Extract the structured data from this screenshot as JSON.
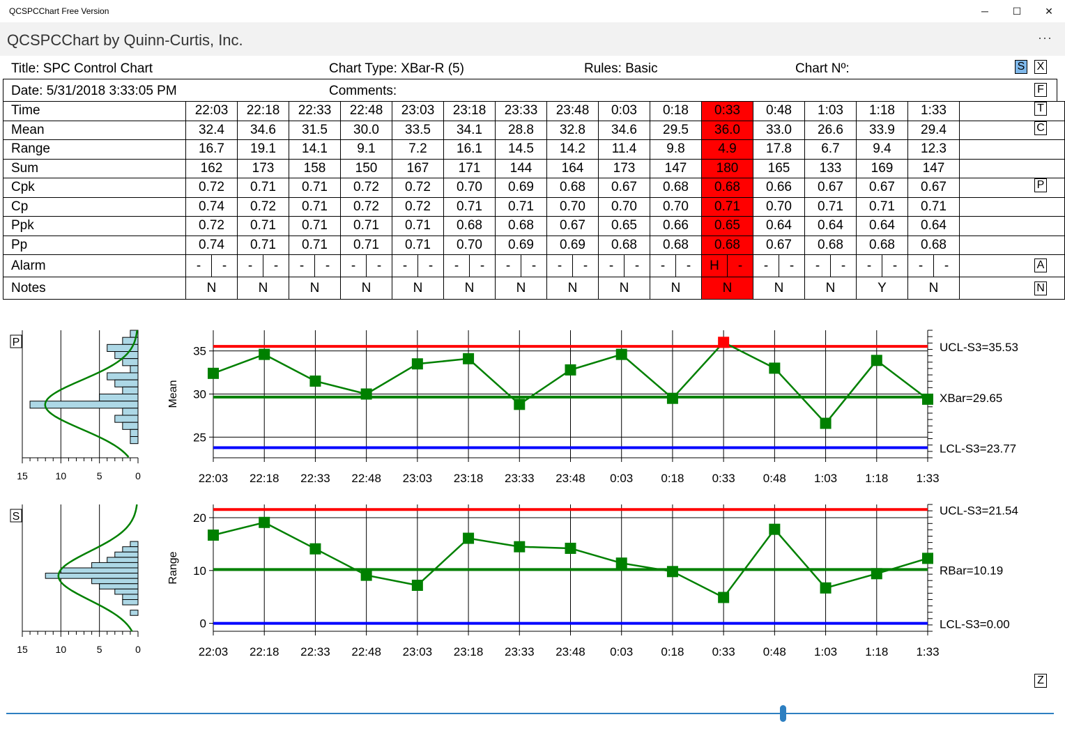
{
  "window": {
    "title": "QCSPCChart Free Version",
    "minimize": "─",
    "maximize": "☐",
    "close": "✕"
  },
  "appbar": {
    "heading": "QCSPCChart by Quinn-Curtis, Inc.",
    "more": "···"
  },
  "header": {
    "title": "Title: SPC Control Chart",
    "chart_type": "Chart Type: XBar-R (5)",
    "rules": "Rules: Basic",
    "chart_no": "Chart Nº:",
    "date": "Date: 5/31/2018 3:33:05 PM",
    "comments": "Comments:"
  },
  "toolbar": {
    "s": "S",
    "x": "X",
    "f": "F",
    "t": "T",
    "c": "C",
    "p": "P",
    "a": "A",
    "n": "N",
    "z": "Z"
  },
  "table": {
    "highlight_index": 10,
    "highlight_color": "#ff0000",
    "time": [
      "22:03",
      "22:18",
      "22:33",
      "22:48",
      "23:03",
      "23:18",
      "23:33",
      "23:48",
      "0:03",
      "0:18",
      "0:33",
      "0:48",
      "1:03",
      "1:18",
      "1:33"
    ],
    "rows": [
      {
        "label": "Mean",
        "values": [
          "32.4",
          "34.6",
          "31.5",
          "30.0",
          "33.5",
          "34.1",
          "28.8",
          "32.8",
          "34.6",
          "29.5",
          "36.0",
          "33.0",
          "26.6",
          "33.9",
          "29.4"
        ]
      },
      {
        "label": "Range",
        "values": [
          "16.7",
          "19.1",
          "14.1",
          "9.1",
          "7.2",
          "16.1",
          "14.5",
          "14.2",
          "11.4",
          "9.8",
          "4.9",
          "17.8",
          "6.7",
          "9.4",
          "12.3"
        ]
      },
      {
        "label": "Sum",
        "values": [
          "162",
          "173",
          "158",
          "150",
          "167",
          "171",
          "144",
          "164",
          "173",
          "147",
          "180",
          "165",
          "133",
          "169",
          "147"
        ]
      },
      {
        "label": "Cpk",
        "values": [
          "0.72",
          "0.71",
          "0.71",
          "0.72",
          "0.72",
          "0.70",
          "0.69",
          "0.68",
          "0.67",
          "0.68",
          "0.68",
          "0.66",
          "0.67",
          "0.67",
          "0.67"
        ]
      },
      {
        "label": "Cp",
        "values": [
          "0.74",
          "0.72",
          "0.71",
          "0.72",
          "0.72",
          "0.71",
          "0.71",
          "0.70",
          "0.70",
          "0.70",
          "0.71",
          "0.70",
          "0.71",
          "0.71",
          "0.71"
        ]
      },
      {
        "label": "Ppk",
        "values": [
          "0.72",
          "0.71",
          "0.71",
          "0.71",
          "0.71",
          "0.68",
          "0.68",
          "0.67",
          "0.65",
          "0.66",
          "0.65",
          "0.64",
          "0.64",
          "0.64",
          "0.64"
        ]
      },
      {
        "label": "Pp",
        "values": [
          "0.74",
          "0.71",
          "0.71",
          "0.71",
          "0.71",
          "0.70",
          "0.69",
          "0.69",
          "0.68",
          "0.68",
          "0.68",
          "0.67",
          "0.68",
          "0.68",
          "0.68"
        ]
      }
    ],
    "time_label": "Time",
    "alarm_label": "Alarm",
    "alarms": [
      [
        "-",
        "-"
      ],
      [
        "-",
        "-"
      ],
      [
        "-",
        "-"
      ],
      [
        "-",
        "-"
      ],
      [
        "-",
        "-"
      ],
      [
        "-",
        "-"
      ],
      [
        "-",
        "-"
      ],
      [
        "-",
        "-"
      ],
      [
        "-",
        "-"
      ],
      [
        "-",
        "-"
      ],
      [
        "H",
        "-"
      ],
      [
        "-",
        "-"
      ],
      [
        "-",
        "-"
      ],
      [
        "-",
        "-"
      ],
      [
        "-",
        "-"
      ]
    ],
    "notes_label": "Notes",
    "notes": [
      "N",
      "N",
      "N",
      "N",
      "N",
      "N",
      "N",
      "N",
      "N",
      "N",
      "N",
      "N",
      "N",
      "Y",
      "N"
    ]
  },
  "chart_data": [
    {
      "type": "line",
      "ylabel": "Mean",
      "ylim": [
        22.6,
        37.4
      ],
      "yticks": [
        25,
        30,
        35
      ],
      "x": [
        "22:03",
        "22:18",
        "22:33",
        "22:48",
        "23:03",
        "23:18",
        "23:33",
        "23:48",
        "0:03",
        "0:18",
        "0:33",
        "0:48",
        "1:03",
        "1:18",
        "1:33"
      ],
      "values": [
        32.4,
        34.6,
        31.5,
        30.0,
        33.5,
        34.1,
        28.8,
        32.8,
        34.6,
        29.5,
        36.0,
        33.0,
        26.6,
        33.9,
        29.4
      ],
      "alarm_points": [
        10
      ],
      "limits": [
        {
          "label": "UCL-S3=35.53",
          "value": 35.53,
          "color": "#ff0000"
        },
        {
          "label": "XBar=29.65",
          "value": 29.65,
          "color": "#008000"
        },
        {
          "label": "LCL-S3=23.77",
          "value": 23.77,
          "color": "#0000ff"
        }
      ],
      "histogram_label": "P",
      "histogram_xticks": [
        "15",
        "10",
        "5",
        "0"
      ],
      "series_color": "#008000",
      "alarm_color": "#ff0000"
    },
    {
      "type": "line",
      "ylabel": "Range",
      "ylim": [
        -1.5,
        22.5
      ],
      "yticks": [
        0,
        10,
        20
      ],
      "x": [
        "22:03",
        "22:18",
        "22:33",
        "22:48",
        "23:03",
        "23:18",
        "23:33",
        "23:48",
        "0:03",
        "0:18",
        "0:33",
        "0:48",
        "1:03",
        "1:18",
        "1:33"
      ],
      "values": [
        16.7,
        19.1,
        14.1,
        9.1,
        7.2,
        16.1,
        14.5,
        14.2,
        11.4,
        9.8,
        4.9,
        17.8,
        6.7,
        9.4,
        12.3
      ],
      "alarm_points": [],
      "limits": [
        {
          "label": "UCL-S3=21.54",
          "value": 21.54,
          "color": "#ff0000"
        },
        {
          "label": "RBar=10.19",
          "value": 10.19,
          "color": "#008000"
        },
        {
          "label": "LCL-S3=0.00",
          "value": 0.0,
          "color": "#0000ff"
        }
      ],
      "histogram_label": "S",
      "histogram_xticks": [
        "15",
        "10",
        "5",
        "0"
      ],
      "series_color": "#008000",
      "alarm_color": "#ff0000"
    }
  ]
}
